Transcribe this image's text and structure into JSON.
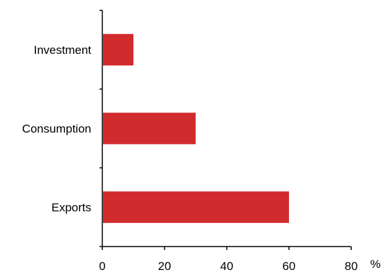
{
  "chart_data": {
    "type": "bar",
    "orientation": "horizontal",
    "categories": [
      "Investment",
      "Consumption",
      "Exports"
    ],
    "values": [
      10,
      30,
      60
    ],
    "title": "",
    "xlabel": "%",
    "ylabel": "",
    "xlim": [
      0,
      80
    ],
    "xticks": [
      0,
      20,
      40,
      60,
      80
    ],
    "xtick_labels": [
      "0",
      "20",
      "40",
      "60",
      "80"
    ],
    "grid": false,
    "legend": "none",
    "bar_color": "#d12b2e"
  }
}
